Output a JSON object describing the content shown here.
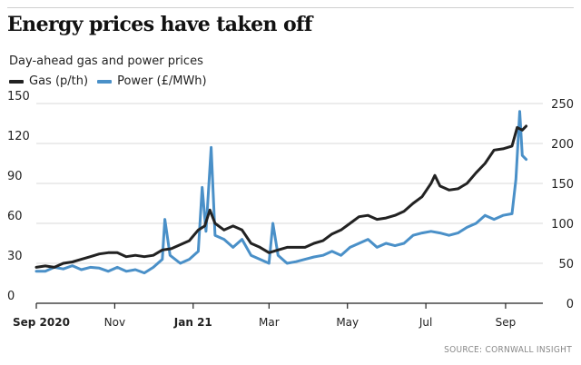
{
  "header": {
    "title": "Energy prices have taken off",
    "subtitle": "Day-ahead gas and power prices",
    "source": "SOURCE: CORNWALL INSIGHT"
  },
  "chart_data": {
    "type": "line",
    "title": "Energy prices have taken off",
    "subtitle": "Day-ahead gas and power prices",
    "legend_position": "top-left",
    "grid": true,
    "x_type": "date",
    "x_range": [
      "2020-09-01",
      "2021-09-30"
    ],
    "x_ticks": [
      {
        "date": "2020-09-01",
        "label": "Sep 2020",
        "bold": true
      },
      {
        "date": "2020-11-01",
        "label": "Nov",
        "bold": false
      },
      {
        "date": "2021-01-01",
        "label": "Jan 21",
        "bold": true
      },
      {
        "date": "2021-03-01",
        "label": "Mar",
        "bold": false
      },
      {
        "date": "2021-05-01",
        "label": "May",
        "bold": false
      },
      {
        "date": "2021-07-01",
        "label": "Jul",
        "bold": false
      },
      {
        "date": "2021-09-01",
        "label": "Sep",
        "bold": false
      }
    ],
    "y_left": {
      "label": "Gas (p/th)",
      "range": [
        0,
        150
      ],
      "ticks": [
        0,
        30,
        60,
        90,
        120,
        150
      ]
    },
    "y_right": {
      "label": "Power (£/MWh)",
      "range": [
        0,
        250
      ],
      "ticks": [
        0,
        50,
        100,
        150,
        200,
        250
      ]
    },
    "series": [
      {
        "name": "Gas (p/th)",
        "axis": "left",
        "color": "#222222",
        "points": [
          [
            "2020-09-01",
            27
          ],
          [
            "2020-09-08",
            28
          ],
          [
            "2020-09-15",
            27
          ],
          [
            "2020-09-22",
            30
          ],
          [
            "2020-09-29",
            31
          ],
          [
            "2020-10-06",
            33
          ],
          [
            "2020-10-13",
            35
          ],
          [
            "2020-10-20",
            37
          ],
          [
            "2020-10-27",
            38
          ],
          [
            "2020-11-03",
            38
          ],
          [
            "2020-11-10",
            35
          ],
          [
            "2020-11-17",
            36
          ],
          [
            "2020-11-24",
            35
          ],
          [
            "2020-12-01",
            36
          ],
          [
            "2020-12-08",
            40
          ],
          [
            "2020-12-15",
            41
          ],
          [
            "2020-12-22",
            44
          ],
          [
            "2020-12-29",
            47
          ],
          [
            "2021-01-05",
            55
          ],
          [
            "2021-01-10",
            58
          ],
          [
            "2021-01-14",
            70
          ],
          [
            "2021-01-18",
            60
          ],
          [
            "2021-01-25",
            55
          ],
          [
            "2021-02-01",
            58
          ],
          [
            "2021-02-08",
            55
          ],
          [
            "2021-02-15",
            45
          ],
          [
            "2021-02-22",
            42
          ],
          [
            "2021-03-01",
            38
          ],
          [
            "2021-03-08",
            40
          ],
          [
            "2021-03-15",
            42
          ],
          [
            "2021-03-22",
            42
          ],
          [
            "2021-03-29",
            42
          ],
          [
            "2021-04-05",
            45
          ],
          [
            "2021-04-12",
            47
          ],
          [
            "2021-04-19",
            52
          ],
          [
            "2021-04-26",
            55
          ],
          [
            "2021-05-03",
            60
          ],
          [
            "2021-05-10",
            65
          ],
          [
            "2021-05-17",
            66
          ],
          [
            "2021-05-24",
            63
          ],
          [
            "2021-05-31",
            64
          ],
          [
            "2021-06-07",
            66
          ],
          [
            "2021-06-14",
            69
          ],
          [
            "2021-06-21",
            75
          ],
          [
            "2021-06-28",
            80
          ],
          [
            "2021-07-05",
            90
          ],
          [
            "2021-07-08",
            96
          ],
          [
            "2021-07-12",
            88
          ],
          [
            "2021-07-19",
            85
          ],
          [
            "2021-07-26",
            86
          ],
          [
            "2021-08-02",
            90
          ],
          [
            "2021-08-09",
            98
          ],
          [
            "2021-08-16",
            105
          ],
          [
            "2021-08-23",
            115
          ],
          [
            "2021-08-30",
            116
          ],
          [
            "2021-09-06",
            118
          ],
          [
            "2021-09-10",
            132
          ],
          [
            "2021-09-14",
            130
          ],
          [
            "2021-09-17",
            133
          ]
        ]
      },
      {
        "name": "Power (£/MWh)",
        "axis": "right",
        "color": "#4a90c8",
        "points": [
          [
            "2020-09-01",
            40
          ],
          [
            "2020-09-08",
            40
          ],
          [
            "2020-09-15",
            45
          ],
          [
            "2020-09-22",
            43
          ],
          [
            "2020-09-29",
            47
          ],
          [
            "2020-10-06",
            42
          ],
          [
            "2020-10-13",
            45
          ],
          [
            "2020-10-20",
            44
          ],
          [
            "2020-10-27",
            40
          ],
          [
            "2020-11-03",
            45
          ],
          [
            "2020-11-10",
            40
          ],
          [
            "2020-11-17",
            42
          ],
          [
            "2020-11-24",
            38
          ],
          [
            "2020-12-01",
            45
          ],
          [
            "2020-12-08",
            55
          ],
          [
            "2020-12-10",
            105
          ],
          [
            "2020-12-14",
            60
          ],
          [
            "2020-12-22",
            50
          ],
          [
            "2020-12-29",
            55
          ],
          [
            "2021-01-05",
            65
          ],
          [
            "2021-01-08",
            145
          ],
          [
            "2021-01-11",
            90
          ],
          [
            "2021-01-15",
            195
          ],
          [
            "2021-01-18",
            85
          ],
          [
            "2021-01-25",
            80
          ],
          [
            "2021-02-01",
            70
          ],
          [
            "2021-02-08",
            80
          ],
          [
            "2021-02-15",
            60
          ],
          [
            "2021-02-22",
            55
          ],
          [
            "2021-03-01",
            50
          ],
          [
            "2021-03-04",
            100
          ],
          [
            "2021-03-08",
            60
          ],
          [
            "2021-03-15",
            50
          ],
          [
            "2021-03-22",
            52
          ],
          [
            "2021-03-29",
            55
          ],
          [
            "2021-04-05",
            58
          ],
          [
            "2021-04-12",
            60
          ],
          [
            "2021-04-19",
            65
          ],
          [
            "2021-04-26",
            60
          ],
          [
            "2021-05-03",
            70
          ],
          [
            "2021-05-10",
            75
          ],
          [
            "2021-05-17",
            80
          ],
          [
            "2021-05-24",
            70
          ],
          [
            "2021-05-31",
            75
          ],
          [
            "2021-06-07",
            72
          ],
          [
            "2021-06-14",
            75
          ],
          [
            "2021-06-21",
            85
          ],
          [
            "2021-06-28",
            88
          ],
          [
            "2021-07-05",
            90
          ],
          [
            "2021-07-12",
            88
          ],
          [
            "2021-07-19",
            85
          ],
          [
            "2021-07-26",
            88
          ],
          [
            "2021-08-02",
            95
          ],
          [
            "2021-08-09",
            100
          ],
          [
            "2021-08-16",
            110
          ],
          [
            "2021-08-23",
            105
          ],
          [
            "2021-08-30",
            110
          ],
          [
            "2021-09-06",
            112
          ],
          [
            "2021-09-09",
            155
          ],
          [
            "2021-09-12",
            240
          ],
          [
            "2021-09-14",
            185
          ],
          [
            "2021-09-17",
            180
          ]
        ]
      }
    ]
  }
}
